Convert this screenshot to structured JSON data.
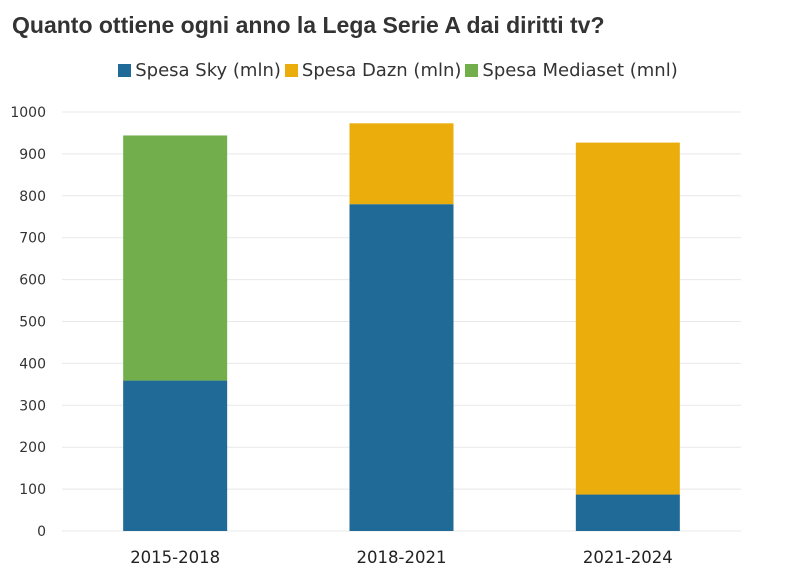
{
  "chart_data": {
    "type": "bar",
    "stacked": true,
    "title": "Quanto ottiene ogni anno la Lega Serie A dai diritti tv?",
    "xlabel": "",
    "ylabel": "",
    "categories": [
      "2015-2018",
      "2018-2021",
      "2021-2024"
    ],
    "series": [
      {
        "name": "Spesa Sky (mln)",
        "color": "#1f6a96",
        "values": [
          359,
          780,
          87
        ]
      },
      {
        "name": "Spesa Dazn (mln)",
        "color": "#ebad0b",
        "values": [
          0,
          193,
          840
        ]
      },
      {
        "name": "Spesa Mediaset (mnl)",
        "color": "#72ae4c",
        "values": [
          585,
          0,
          0
        ]
      }
    ],
    "ylim": [
      0,
      1000
    ],
    "yticks": [
      0,
      100,
      200,
      300,
      400,
      500,
      600,
      700,
      800,
      900,
      1000
    ],
    "grid": true,
    "legend_position": "top"
  }
}
